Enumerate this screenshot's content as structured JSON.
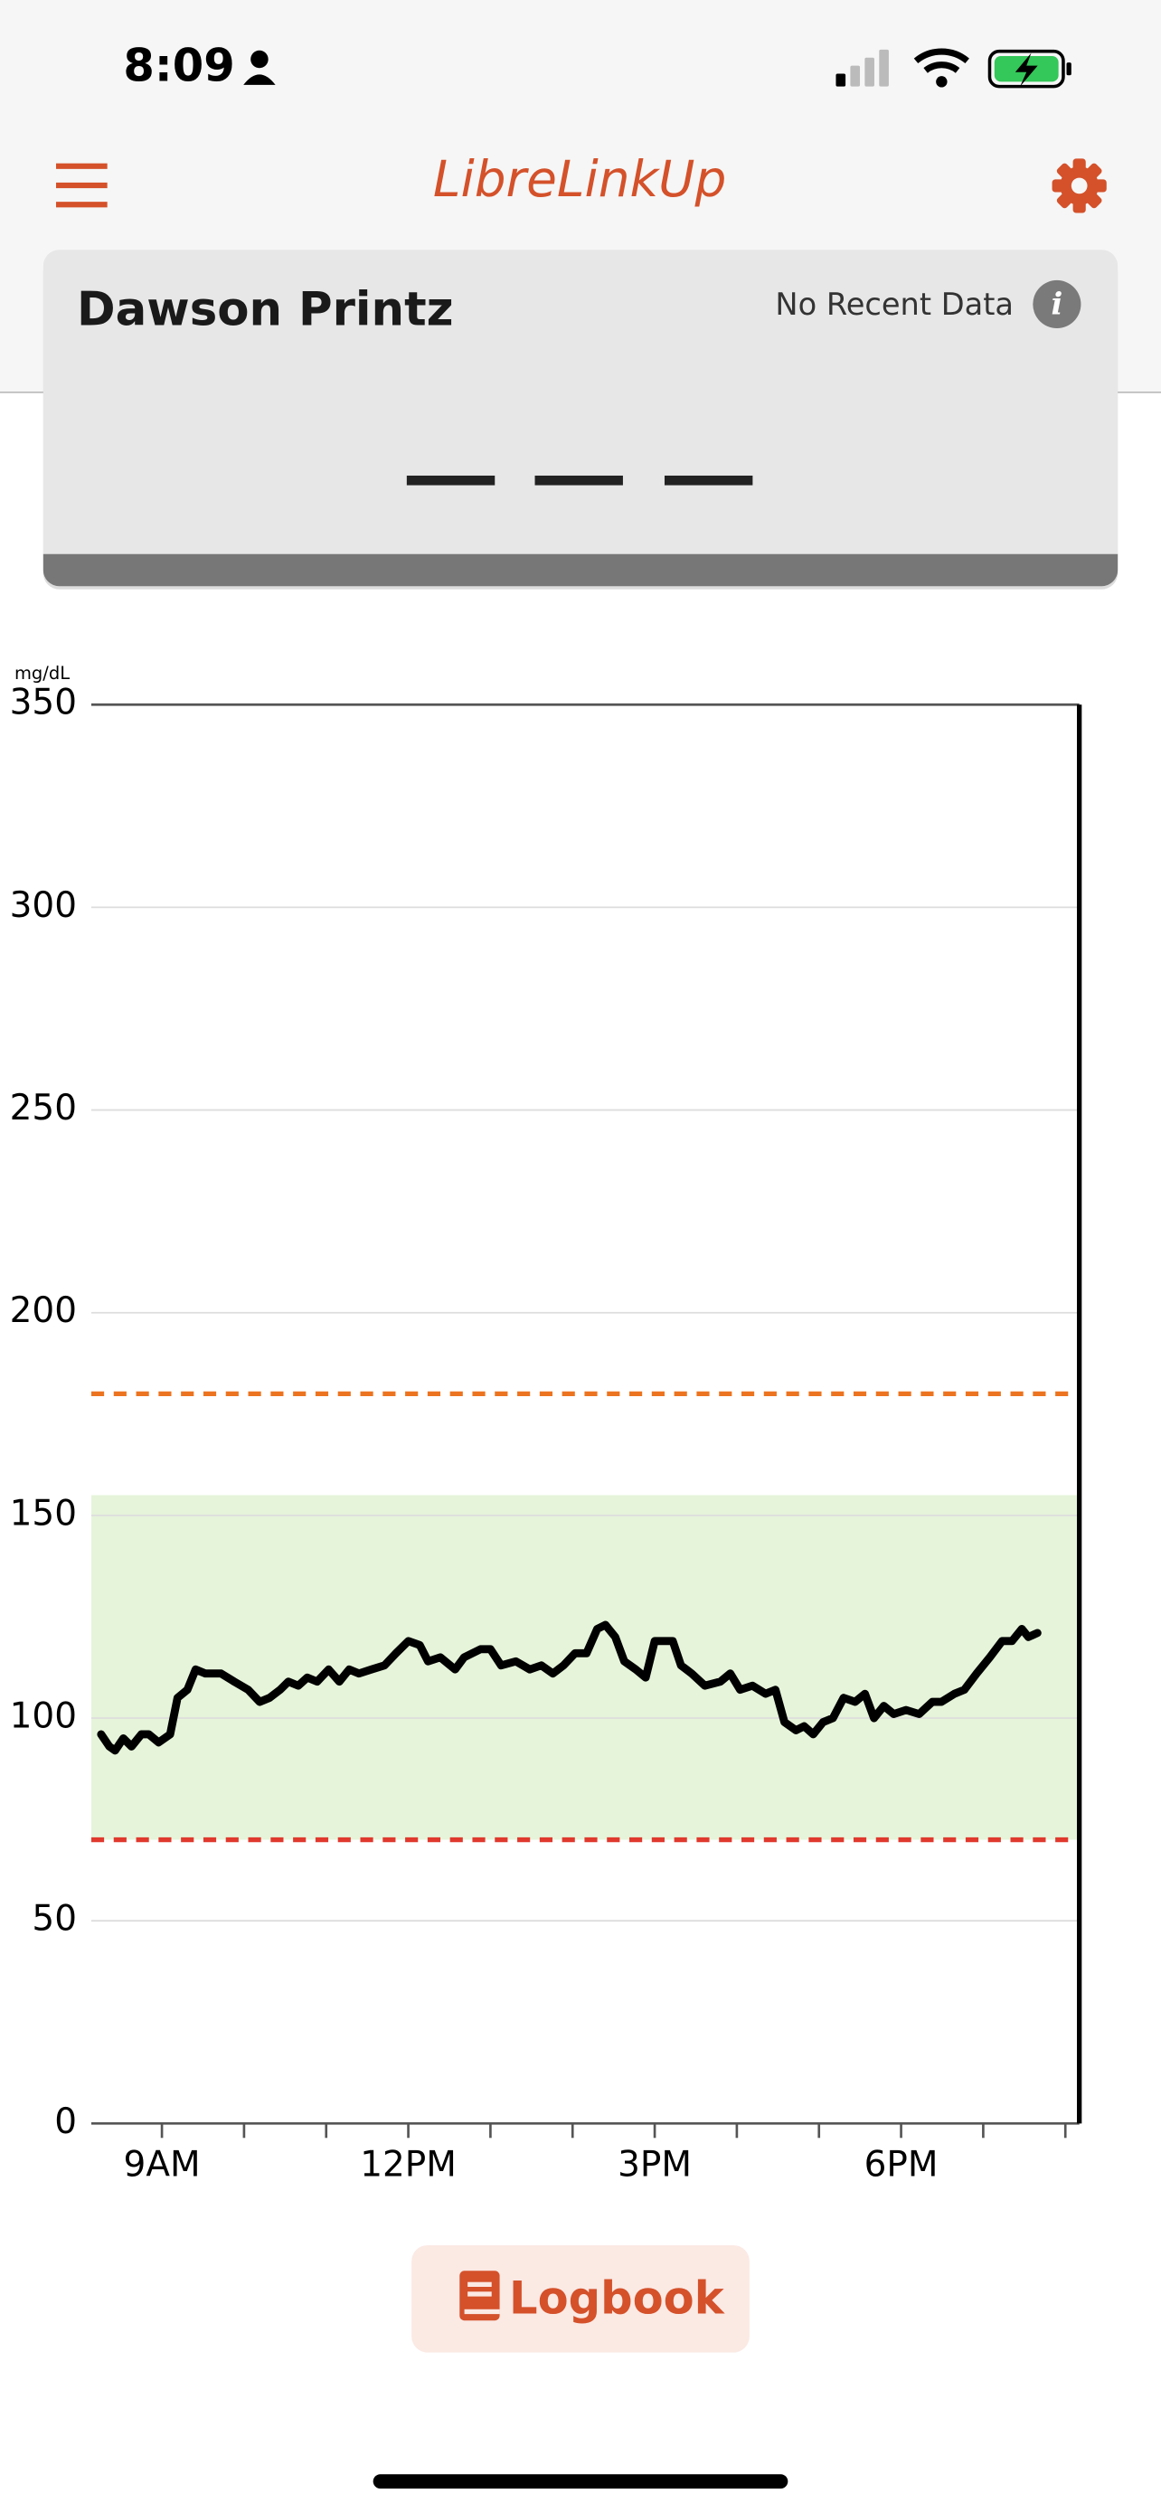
{
  "status_bar": {
    "time": "8:09"
  },
  "header": {
    "title": "LibreLinkUp"
  },
  "patient_card": {
    "name": "Dawson Printz",
    "status": "No Recent Data"
  },
  "chart_data": {
    "type": "line",
    "y_unit_label": "mg/dL",
    "xlim": [
      8.14,
      20.17
    ],
    "xticks": [
      {
        "value": 9,
        "label": "9AM"
      },
      {
        "value": 12,
        "label": "12PM"
      },
      {
        "value": 15,
        "label": "3PM"
      },
      {
        "value": 18,
        "label": "6PM"
      }
    ],
    "x_minor_ticks": [
      10,
      11,
      13,
      14,
      16,
      17,
      19,
      20
    ],
    "ylim": [
      0,
      350
    ],
    "yticks": [
      0,
      50,
      100,
      150,
      200,
      250,
      300,
      350
    ],
    "grid": true,
    "target_range": [
      70,
      155
    ],
    "target_range_color": "#e6f4da",
    "high_threshold": 180,
    "high_color": "#ec7420",
    "low_threshold": 70,
    "low_color": "#e0392e",
    "color": "#000000",
    "x": [
      8.26,
      8.36,
      8.43,
      8.53,
      8.63,
      8.75,
      8.84,
      8.96,
      9.1,
      9.19,
      9.31,
      9.41,
      9.53,
      9.72,
      9.88,
      10.05,
      10.19,
      10.31,
      10.44,
      10.54,
      10.66,
      10.77,
      10.89,
      11.03,
      11.16,
      11.28,
      11.4,
      11.55,
      11.71,
      11.85,
      12.0,
      12.14,
      12.24,
      12.39,
      12.57,
      12.68,
      12.88,
      13.0,
      13.13,
      13.31,
      13.48,
      13.62,
      13.76,
      13.89,
      14.03,
      14.17,
      14.3,
      14.4,
      14.52,
      14.63,
      14.77,
      14.89,
      15.0,
      15.12,
      15.22,
      15.32,
      15.45,
      15.61,
      15.8,
      15.92,
      16.04,
      16.19,
      16.35,
      16.47,
      16.58,
      16.72,
      16.82,
      16.93,
      17.05,
      17.17,
      17.3,
      17.44,
      17.56,
      17.67,
      17.79,
      17.91,
      18.06,
      18.22,
      18.38,
      18.49,
      18.65,
      18.77,
      18.92,
      19.08,
      19.23,
      19.35,
      19.47,
      19.55,
      19.66
    ],
    "values": [
      96,
      93,
      92,
      95,
      93,
      96,
      96,
      94,
      96,
      105,
      107,
      112,
      111,
      111,
      109,
      107,
      104,
      105,
      107,
      109,
      108,
      110,
      109,
      112,
      109,
      112,
      111,
      112,
      113,
      116,
      119,
      118,
      114,
      115,
      112,
      115,
      117,
      117,
      113,
      114,
      112,
      113,
      111,
      113,
      116,
      116,
      122,
      123,
      120,
      114,
      112,
      110,
      119,
      119,
      119,
      113,
      111,
      108,
      109,
      111,
      107,
      108,
      106,
      107,
      99,
      97,
      98,
      96,
      99,
      100,
      105,
      104,
      106,
      100,
      103,
      101,
      102,
      101,
      104,
      104,
      106,
      107,
      111,
      115,
      119,
      119,
      122,
      120,
      121
    ]
  },
  "button": {
    "label": "Logbook"
  }
}
